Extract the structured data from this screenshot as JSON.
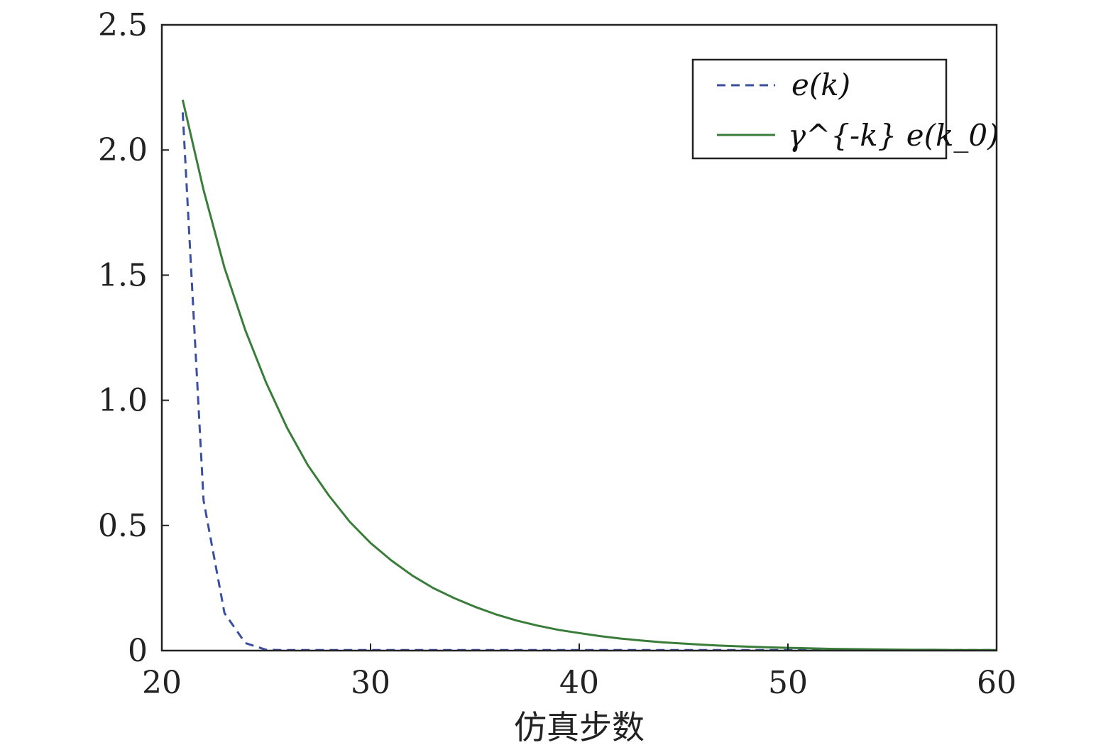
{
  "chart_data": {
    "type": "line",
    "title": "",
    "xlabel": "仿真步数",
    "ylabel": "",
    "xlim": [
      20,
      60
    ],
    "ylim": [
      0,
      2.5
    ],
    "xticks": [
      {
        "value": 20,
        "label": "20"
      },
      {
        "value": 30,
        "label": "30"
      },
      {
        "value": 40,
        "label": "40"
      },
      {
        "value": 50,
        "label": "50"
      },
      {
        "value": 60,
        "label": "60"
      }
    ],
    "yticks": [
      {
        "value": 0,
        "label": "0"
      },
      {
        "value": 0.5,
        "label": "0.5"
      },
      {
        "value": 1.0,
        "label": "1.0"
      },
      {
        "value": 1.5,
        "label": "1.5"
      },
      {
        "value": 2.0,
        "label": "2.0"
      },
      {
        "value": 2.5,
        "label": "2.5"
      }
    ],
    "grid": false,
    "legend_position": "top-right",
    "series": [
      {
        "name": "e(k)",
        "color": "#3a4fa0",
        "style": "dashed",
        "x": [
          21,
          22,
          23,
          24,
          25,
          26,
          27,
          28,
          29,
          30,
          35,
          40,
          45,
          50,
          55,
          60
        ],
        "y": [
          2.15,
          0.6,
          0.15,
          0.03,
          0.003,
          0.002,
          0.002,
          0.002,
          0.002,
          0.002,
          0.002,
          0.002,
          0.002,
          0.002,
          0.002,
          0.002
        ]
      },
      {
        "name": "γ^{-k} e(k_0)",
        "color": "#3a7d3a",
        "style": "solid",
        "x": [
          21,
          22,
          23,
          24,
          25,
          26,
          27,
          28,
          29,
          30,
          31,
          32,
          33,
          34,
          35,
          36,
          37,
          38,
          39,
          40,
          41,
          42,
          43,
          44,
          45,
          46,
          47,
          48,
          49,
          50,
          51,
          52,
          53,
          54,
          55,
          56,
          57,
          58,
          59,
          60
        ],
        "y": [
          2.2,
          1.84,
          1.53,
          1.28,
          1.07,
          0.89,
          0.74,
          0.62,
          0.515,
          0.43,
          0.36,
          0.3,
          0.25,
          0.21,
          0.175,
          0.145,
          0.12,
          0.1,
          0.083,
          0.07,
          0.058,
          0.048,
          0.04,
          0.033,
          0.028,
          0.023,
          0.019,
          0.016,
          0.013,
          0.011,
          0.009,
          0.007,
          0.006,
          0.005,
          0.004,
          0.003,
          0.003,
          0.002,
          0.002,
          0.002
        ]
      }
    ]
  }
}
